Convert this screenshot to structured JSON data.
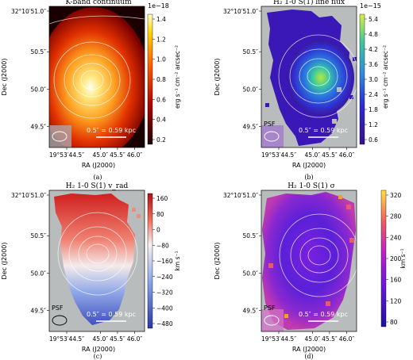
{
  "panels": [
    {
      "id": "a",
      "title": "K-band continuum",
      "caption": "(a)",
      "xlabel": "RA (J2000)",
      "ylabel": "Dec (J2000)",
      "xticks": [
        "19°53′44.5″",
        "45.0″",
        "45.5″",
        "46.0″"
      ],
      "yticks": [
        "32°10′51.0″",
        "50.5″",
        "50.0″",
        "49.5″"
      ],
      "scale_bar": "0.5″ = 0.59 kpc",
      "psf_label": "",
      "colorbar": {
        "label": "erg s⁻¹ cm⁻² arcsec⁻²",
        "multiplier": "1e−18",
        "ticks": [
          "1.4",
          "1.2",
          "1.0",
          "0.8",
          "0.6",
          "0.4",
          "0.2"
        ],
        "colormap": "hot"
      }
    },
    {
      "id": "b",
      "title": "H₂ 1-0 S(1) line flux",
      "caption": "(b)",
      "xlabel": "RA (J2000)",
      "ylabel": "Dec (J2000)",
      "xticks": [
        "19°53′44.5″",
        "45.0″",
        "45.5″",
        "46.0″"
      ],
      "yticks": [
        "32°10′51.0″",
        "50.5″",
        "50.0″",
        "49.5″"
      ],
      "scale_bar": "0.5″ = 0.59 kpc",
      "psf_label": "PSF",
      "colorbar": {
        "label": "erg s⁻¹ cm⁻² arcsec⁻²",
        "multiplier": "1e−15",
        "ticks": [
          "5.4",
          "4.8",
          "4.2",
          "3.6",
          "3.0",
          "2.4",
          "1.8",
          "1.2",
          "0.6"
        ],
        "colormap": "viridis-blue"
      }
    },
    {
      "id": "c",
      "title": "H₂ 1-0 S(1) v_rad",
      "caption": "(c)",
      "xlabel": "RA (J2000)",
      "ylabel": "Dec (J2000)",
      "xticks": [
        "19°53′44.5″",
        "45.0″",
        "45.5″",
        "46.0″"
      ],
      "yticks": [
        "32°10′51.0″",
        "50.5″",
        "50.0″",
        "49.5″"
      ],
      "scale_bar": "0.5″ = 0.59 kpc",
      "psf_label": "PSF",
      "colorbar": {
        "label": "km s⁻¹",
        "multiplier": "",
        "ticks": [
          "160",
          "80",
          "0",
          "−80",
          "−160",
          "−240",
          "−320",
          "−400",
          "−480"
        ],
        "colormap": "red-blue"
      }
    },
    {
      "id": "d",
      "title": "H₂ 1-0 S(1) σ",
      "caption": "(d)",
      "xlabel": "RA (J2000)",
      "ylabel": "Dec (J2000)",
      "xticks": [
        "19°53′44.5″",
        "45.0″",
        "45.5″",
        "46.0″"
      ],
      "yticks": [
        "32°10′51.0″",
        "50.5″",
        "50.0″",
        "49.5″"
      ],
      "scale_bar": "0.5″ = 0.59 kpc",
      "psf_label": "PSF",
      "colorbar": {
        "label": "km s⁻¹",
        "multiplier": "",
        "ticks": [
          "320",
          "280",
          "240",
          "200",
          "160",
          "120",
          "80"
        ],
        "colormap": "plasma"
      }
    }
  ]
}
